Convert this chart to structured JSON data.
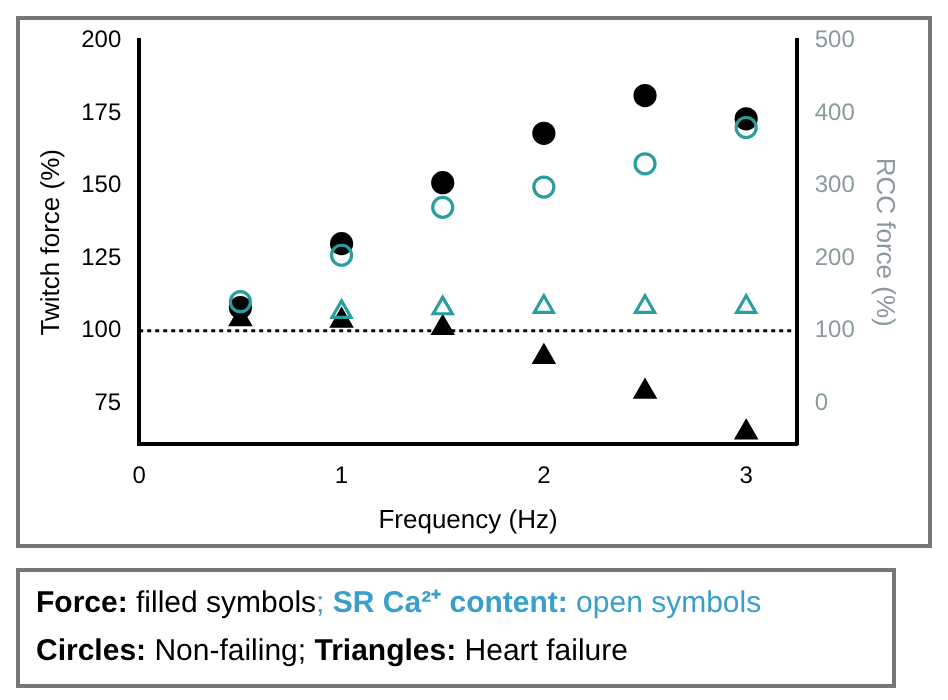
{
  "chart_data": {
    "type": "scatter",
    "xlabel": "Frequency (Hz)",
    "ylabel": "Twitch force (%)",
    "y2label": "RCC force (%)",
    "x": [
      0.5,
      1,
      1.5,
      2,
      2.5,
      3
    ],
    "xlim": [
      0,
      3.25
    ],
    "xticks": [
      0,
      1,
      2,
      3
    ],
    "ylim": [
      61,
      200
    ],
    "yticks": [
      75,
      100,
      125,
      150,
      175,
      200
    ],
    "y2lim": [
      -56,
      500
    ],
    "y2ticks": [
      0,
      100,
      200,
      300,
      400,
      500
    ],
    "series": [
      {
        "color": "#000000",
        "marker": "circle",
        "values": [
          108,
          130,
          151,
          168,
          181,
          173
        ]
      },
      {
        "color": "#000000",
        "marker": "triangle",
        "values": [
          104,
          103.5,
          101,
          91,
          79,
          65
        ]
      },
      {
        "color": "#2a9d9d",
        "marker": "circle",
        "axis": "y2",
        "values": [
          140,
          204,
          270,
          298,
          330,
          380
        ]
      },
      {
        "color": "#2a9d9d",
        "marker": "triangle",
        "axis": "y2",
        "values": [
          null,
          126,
          131,
          133,
          133,
          133
        ]
      }
    ],
    "ref_lines": [
      {
        "axis": "y",
        "value": 100,
        "color": "#000000",
        "line_style": "dotted"
      }
    ],
    "grid": false,
    "legend": false,
    "annotations": [
      "Force: filled symbols; SR Ca²⁺ content: open symbols",
      "Circles: Non-failing; Triangles: Heart failure"
    ]
  }
}
